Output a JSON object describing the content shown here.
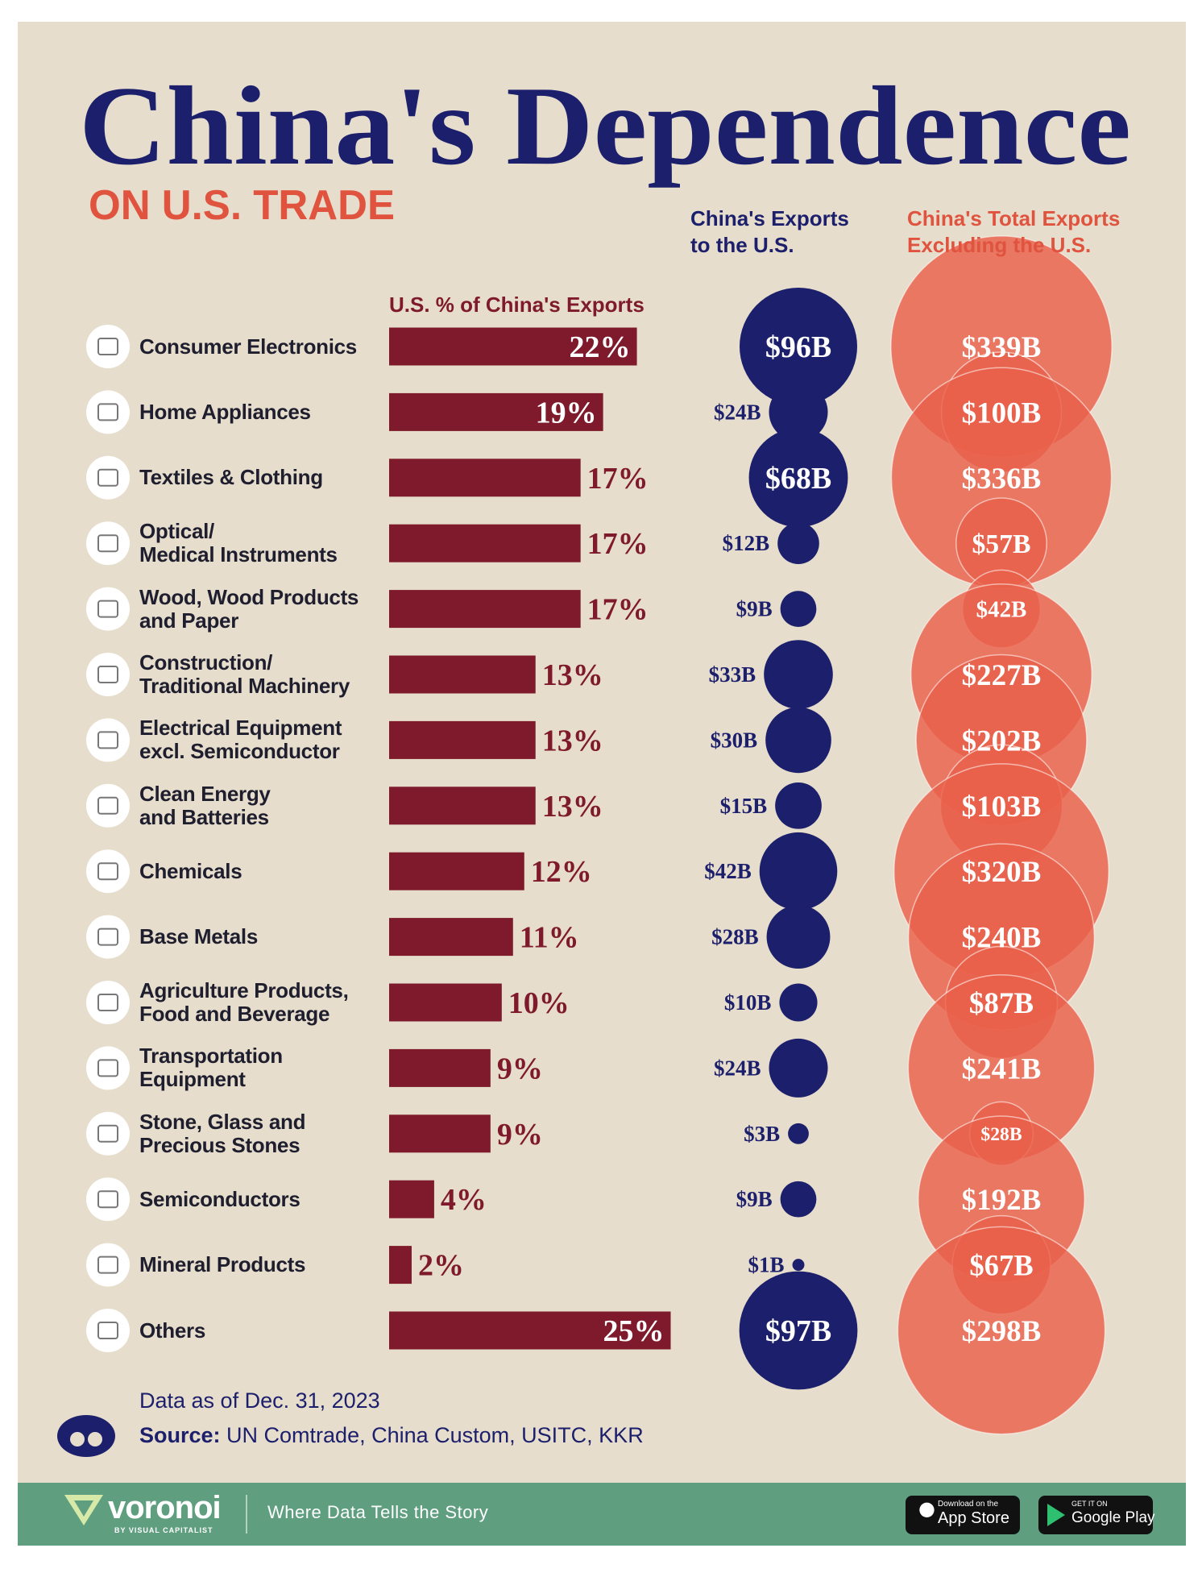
{
  "chart_data": {
    "type": "bar-bubble",
    "title": "China's Dependence",
    "subtitle": "ON U.S. TRADE",
    "categories": [
      "Consumer Electronics",
      "Home Appliances",
      "Textiles & Clothing",
      "Optical/\nMedical Instruments",
      "Wood, Wood Products\nand Paper",
      "Construction/\nTraditional Machinery",
      "Electrical Equipment\nexcl. Semiconductor",
      "Clean Energy\nand Batteries",
      "Chemicals",
      "Base Metals",
      "Agriculture Products,\nFood and Beverage",
      "Transportation\nEquipment",
      "Stone, Glass and\nPrecious Stones",
      "Semiconductors",
      "Mineral Products",
      "Others"
    ],
    "series": [
      {
        "name": "U.S. % of China's Exports",
        "color": "#7e1a2b",
        "values": [
          22,
          19,
          17,
          17,
          17,
          13,
          13,
          13,
          12,
          11,
          10,
          9,
          9,
          4,
          2,
          25
        ],
        "value_labels": [
          "22%",
          "19%",
          "17%",
          "17%",
          "17%",
          "13%",
          "13%",
          "13%",
          "12%",
          "11%",
          "10%",
          "9%",
          "9%",
          "4%",
          "2%",
          "25%"
        ]
      },
      {
        "name": "China's Exports\nto the U.S.",
        "color": "#1c1f6b",
        "values": [
          96,
          24,
          68,
          12,
          9,
          33,
          30,
          15,
          42,
          28,
          10,
          24,
          3,
          9,
          1,
          97
        ],
        "value_labels": [
          "$96B",
          "$24B",
          "$68B",
          "$12B",
          "$9B",
          "$33B",
          "$30B",
          "$15B",
          "$42B",
          "$28B",
          "$10B",
          "$24B",
          "$3B",
          "$9B",
          "$1B",
          "$97B"
        ]
      },
      {
        "name": "China's Total Exports\nExcluding the U.S.",
        "color": "#e9604b",
        "values": [
          339,
          100,
          336,
          57,
          42,
          227,
          202,
          103,
          320,
          240,
          87,
          241,
          28,
          192,
          67,
          298
        ],
        "value_labels": [
          "$339B",
          "$100B",
          "$336B",
          "$57B",
          "$42B",
          "$227B",
          "$202B",
          "$103B",
          "$320B",
          "$240B",
          "$87B",
          "$241B",
          "$28B",
          "$192B",
          "$67B",
          "$298B"
        ]
      }
    ],
    "note": "Data as of Dec. 31, 2023",
    "source_label": "Source:",
    "source": "UN Comtrade, China Custom, USITC, KKR"
  },
  "footer": {
    "brand": "voronoi",
    "brand_sub": "BY VISUAL CAPITALIST",
    "tagline": "Where Data Tells the Story",
    "app_store_small": "Download on the",
    "app_store": "App Store",
    "google_small": "GET IT ON",
    "google": "Google Play"
  }
}
